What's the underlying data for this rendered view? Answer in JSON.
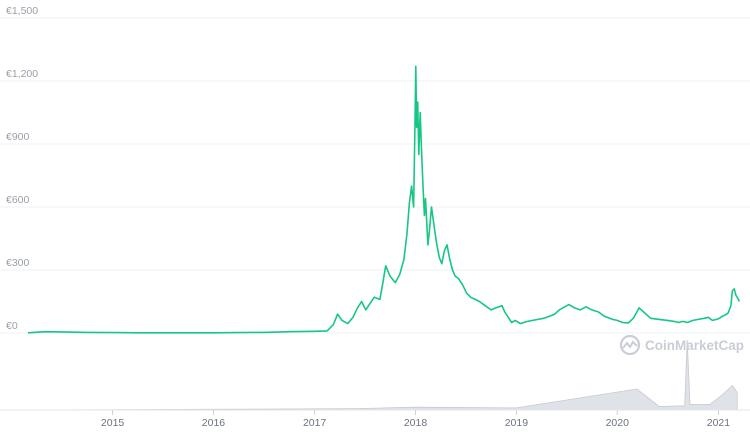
{
  "watermark": {
    "text": "CoinMarketCap",
    "icon": "coinmarketcap-logo-icon"
  },
  "colors": {
    "line": "#16c784",
    "grid": "#eef0f3",
    "volume": "#c5cad3",
    "ticks": "#9a9fa8"
  },
  "chart_data": {
    "type": "line",
    "title": "",
    "xlabel": "",
    "ylabel": "",
    "y_tick_labels": [
      "€0",
      "€300",
      "€600",
      "€900",
      "€1,200",
      "€1,500"
    ],
    "y_tick_values": [
      0,
      300,
      600,
      900,
      1200,
      1500
    ],
    "x_tick_labels": [
      "2015",
      "2016",
      "2017",
      "2018",
      "2019",
      "2020",
      "2021"
    ],
    "x_tick_values": [
      "2015-01-01",
      "2016-01-01",
      "2017-01-01",
      "2018-01-01",
      "2019-01-01",
      "2020-01-01",
      "2021-01-01"
    ],
    "ylim": [
      0,
      1500
    ],
    "xlim": [
      "2014-03-01",
      "2021-03-20"
    ],
    "grid": true,
    "legend": "none",
    "series": [
      {
        "x": [
          "2014-03-01",
          "2014-05-01",
          "2014-07-01",
          "2014-10-01",
          "2015-01-01",
          "2015-04-01",
          "2015-07-01",
          "2015-10-01",
          "2016-01-01",
          "2016-04-01",
          "2016-07-01",
          "2016-10-01",
          "2017-01-01",
          "2017-02-15",
          "2017-03-10",
          "2017-03-25",
          "2017-04-10",
          "2017-05-01",
          "2017-05-20",
          "2017-06-05",
          "2017-06-20",
          "2017-07-05",
          "2017-07-20",
          "2017-08-05",
          "2017-08-25",
          "2017-09-05",
          "2017-09-15",
          "2017-10-01",
          "2017-10-20",
          "2017-11-05",
          "2017-11-20",
          "2017-12-01",
          "2017-12-10",
          "2017-12-18",
          "2017-12-25",
          "2017-12-30",
          "2018-01-02",
          "2018-01-05",
          "2018-01-09",
          "2018-01-13",
          "2018-01-18",
          "2018-01-23",
          "2018-01-28",
          "2018-02-02",
          "2018-02-06",
          "2018-02-10",
          "2018-02-15",
          "2018-02-20",
          "2018-02-28",
          "2018-03-08",
          "2018-03-18",
          "2018-03-28",
          "2018-04-06",
          "2018-04-15",
          "2018-04-25",
          "2018-05-05",
          "2018-05-15",
          "2018-05-25",
          "2018-06-05",
          "2018-06-20",
          "2018-07-05",
          "2018-07-20",
          "2018-08-05",
          "2018-08-20",
          "2018-09-10",
          "2018-10-01",
          "2018-10-20",
          "2018-11-10",
          "2018-11-20",
          "2018-12-05",
          "2018-12-15",
          "2018-12-28",
          "2019-01-15",
          "2019-02-10",
          "2019-03-01",
          "2019-03-20",
          "2019-04-10",
          "2019-05-01",
          "2019-05-20",
          "2019-06-05",
          "2019-06-25",
          "2019-07-10",
          "2019-07-30",
          "2019-08-20",
          "2019-09-10",
          "2019-10-01",
          "2019-10-25",
          "2019-11-15",
          "2019-12-15",
          "2020-01-01",
          "2020-01-20",
          "2020-02-10",
          "2020-02-28",
          "2020-03-12",
          "2020-03-20",
          "2020-04-10",
          "2020-05-01",
          "2020-06-01",
          "2020-07-01",
          "2020-07-25",
          "2020-08-10",
          "2020-08-25",
          "2020-09-10",
          "2020-10-01",
          "2020-10-20",
          "2020-11-10",
          "2020-11-25",
          "2020-12-10",
          "2020-12-25",
          "2021-01-05",
          "2021-01-15",
          "2021-01-25",
          "2021-02-05",
          "2021-02-15",
          "2021-02-20",
          "2021-02-27",
          "2021-03-05",
          "2021-03-12",
          "2021-03-18"
        ],
        "y": [
          1,
          6,
          5,
          3,
          2,
          1,
          1,
          1,
          1,
          2,
          3,
          6,
          8,
          10,
          40,
          90,
          60,
          45,
          75,
          120,
          150,
          110,
          140,
          170,
          160,
          240,
          320,
          270,
          240,
          280,
          350,
          470,
          620,
          700,
          600,
          1000,
          1270,
          980,
          1100,
          850,
          1050,
          860,
          700,
          560,
          640,
          540,
          420,
          480,
          600,
          520,
          430,
          360,
          330,
          390,
          420,
          350,
          300,
          270,
          260,
          230,
          190,
          170,
          160,
          150,
          130,
          110,
          120,
          130,
          100,
          70,
          50,
          60,
          45,
          55,
          60,
          65,
          70,
          80,
          90,
          110,
          125,
          135,
          120,
          110,
          125,
          110,
          100,
          80,
          65,
          60,
          50,
          48,
          70,
          100,
          120,
          95,
          70,
          65,
          60,
          55,
          50,
          55,
          50,
          60,
          65,
          70,
          75,
          60,
          65,
          70,
          80,
          85,
          95,
          130,
          200,
          210,
          180,
          165,
          150
        ]
      }
    ],
    "volume_panel": {
      "x": [
        "2014-03-01",
        "2016-01-01",
        "2017-06-01",
        "2018-01-01",
        "2019-01-01",
        "2020-03-12",
        "2020-06-01",
        "2020-09-01",
        "2020-09-10",
        "2020-09-20",
        "2020-12-01",
        "2021-01-10",
        "2021-02-20",
        "2021-03-10"
      ],
      "v": [
        0,
        1,
        2,
        4,
        3,
        30,
        5,
        6,
        100,
        8,
        8,
        20,
        35,
        25
      ]
    }
  }
}
